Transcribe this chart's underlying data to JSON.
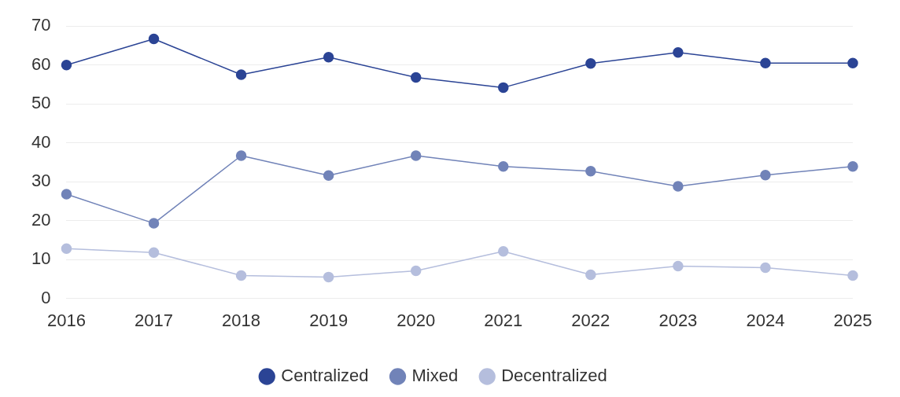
{
  "chart_data": {
    "type": "line",
    "categories": [
      "2016",
      "2017",
      "2018",
      "2019",
      "2020",
      "2021",
      "2022",
      "2023",
      "2024",
      "2025"
    ],
    "series": [
      {
        "name": "Centralized",
        "color": "#2b4495",
        "values": [
          60,
          66.7,
          57.5,
          62,
          56.8,
          54.2,
          60.4,
          63.2,
          60.5,
          60.5
        ]
      },
      {
        "name": "Mixed",
        "color": "#7183b8",
        "values": [
          26.8,
          19.3,
          36.7,
          31.6,
          36.7,
          33.9,
          32.7,
          28.8,
          31.7,
          33.9
        ]
      },
      {
        "name": "Decentralized",
        "color": "#b5bedd",
        "values": [
          12.8,
          11.8,
          5.9,
          5.5,
          7.1,
          12.1,
          6.1,
          8.3,
          7.9,
          5.9
        ]
      }
    ],
    "ylim": [
      0,
      70
    ],
    "yticks": [
      0,
      10,
      20,
      30,
      40,
      50,
      60,
      70
    ],
    "grid": "y",
    "legend": "bottom",
    "marker": "circle",
    "line_style": "solid"
  }
}
